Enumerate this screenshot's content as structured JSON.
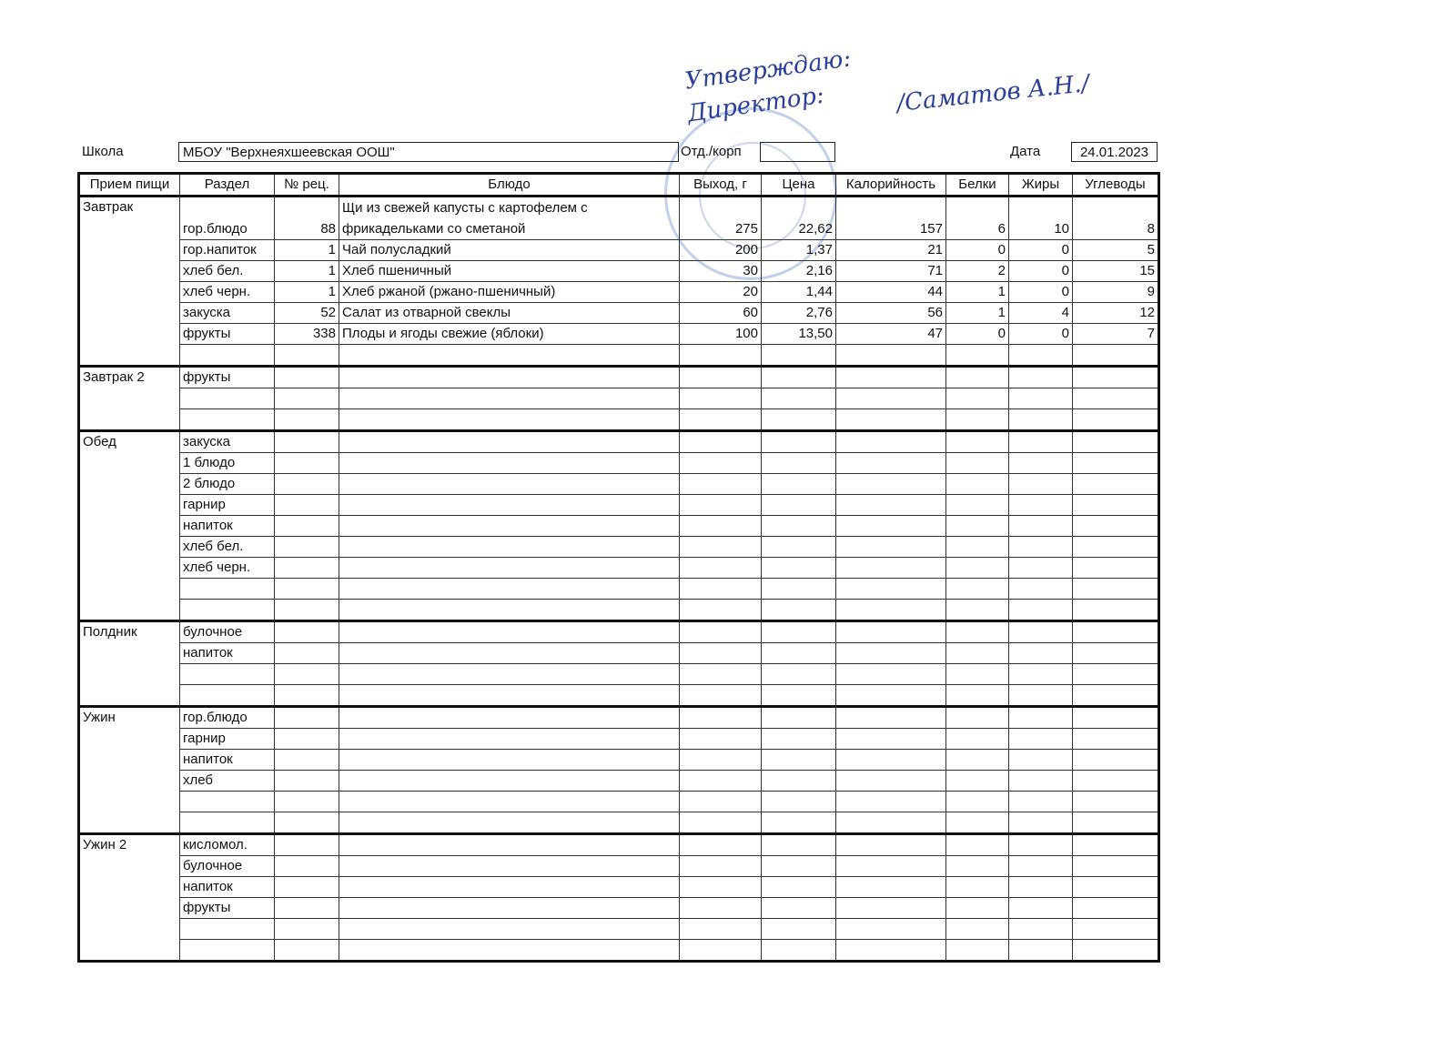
{
  "approval": {
    "line1": "Утверждаю:",
    "line2": "Директор:",
    "name": "/Саматов А.Н./"
  },
  "header": {
    "school_label": "Школа",
    "school": "МБОУ \"Верхнеяхшеевская ООШ\"",
    "dept_label": "Отд./корп",
    "date_label": "Дата",
    "date": "24.01.2023"
  },
  "table": {
    "columns": [
      "Прием пищи",
      "Раздел",
      "№ рец.",
      "Блюдо",
      "Выход, г",
      "Цена",
      "Калорийность",
      "Белки",
      "Жиры",
      "Углеводы"
    ],
    "groups": [
      {
        "meal": "Завтрак",
        "rows": [
          [
            "гор.блюдо",
            "88",
            "Щи из свежей капусты с картофелем с фрикадельками со сметаной",
            "275",
            "22,62",
            "157",
            "6",
            "10",
            "8"
          ],
          [
            "гор.напиток",
            "1",
            "Чай полусладкий",
            "200",
            "1,37",
            "21",
            "0",
            "0",
            "5"
          ],
          [
            "хлеб бел.",
            "1",
            "Хлеб пшеничный",
            "30",
            "2,16",
            "71",
            "2",
            "0",
            "15"
          ],
          [
            "хлеб черн.",
            "1",
            "Хлеб ржаной (ржано-пшеничный)",
            "20",
            "1,44",
            "44",
            "1",
            "0",
            "9"
          ],
          [
            "закуска",
            "52",
            "Салат из отварной свеклы",
            "60",
            "2,76",
            "56",
            "1",
            "4",
            "12"
          ],
          [
            "фрукты",
            "338",
            "Плоды и ягоды свежие (яблоки)",
            "100",
            "13,50",
            "47",
            "0",
            "0",
            "7"
          ],
          null
        ]
      },
      {
        "meal": "Завтрак 2",
        "rows": [
          [
            "фрукты"
          ],
          null,
          null
        ]
      },
      {
        "meal": "Обед",
        "rows": [
          [
            "закуска"
          ],
          [
            "1 блюдо"
          ],
          [
            "2 блюдо"
          ],
          [
            "гарнир"
          ],
          [
            "напиток"
          ],
          [
            "хлеб бел."
          ],
          [
            "хлеб черн."
          ],
          null,
          null
        ]
      },
      {
        "meal": "Полдник",
        "rows": [
          [
            "булочное"
          ],
          [
            "напиток"
          ],
          null,
          null
        ]
      },
      {
        "meal": "Ужин",
        "rows": [
          [
            "гор.блюдо"
          ],
          [
            "гарнир"
          ],
          [
            "напиток"
          ],
          [
            "хлеб"
          ],
          null,
          null
        ]
      },
      {
        "meal": "Ужин 2",
        "rows": [
          [
            "кисломол."
          ],
          [
            "булочное"
          ],
          [
            "напиток"
          ],
          [
            "фрукты"
          ],
          null,
          null
        ]
      }
    ]
  }
}
